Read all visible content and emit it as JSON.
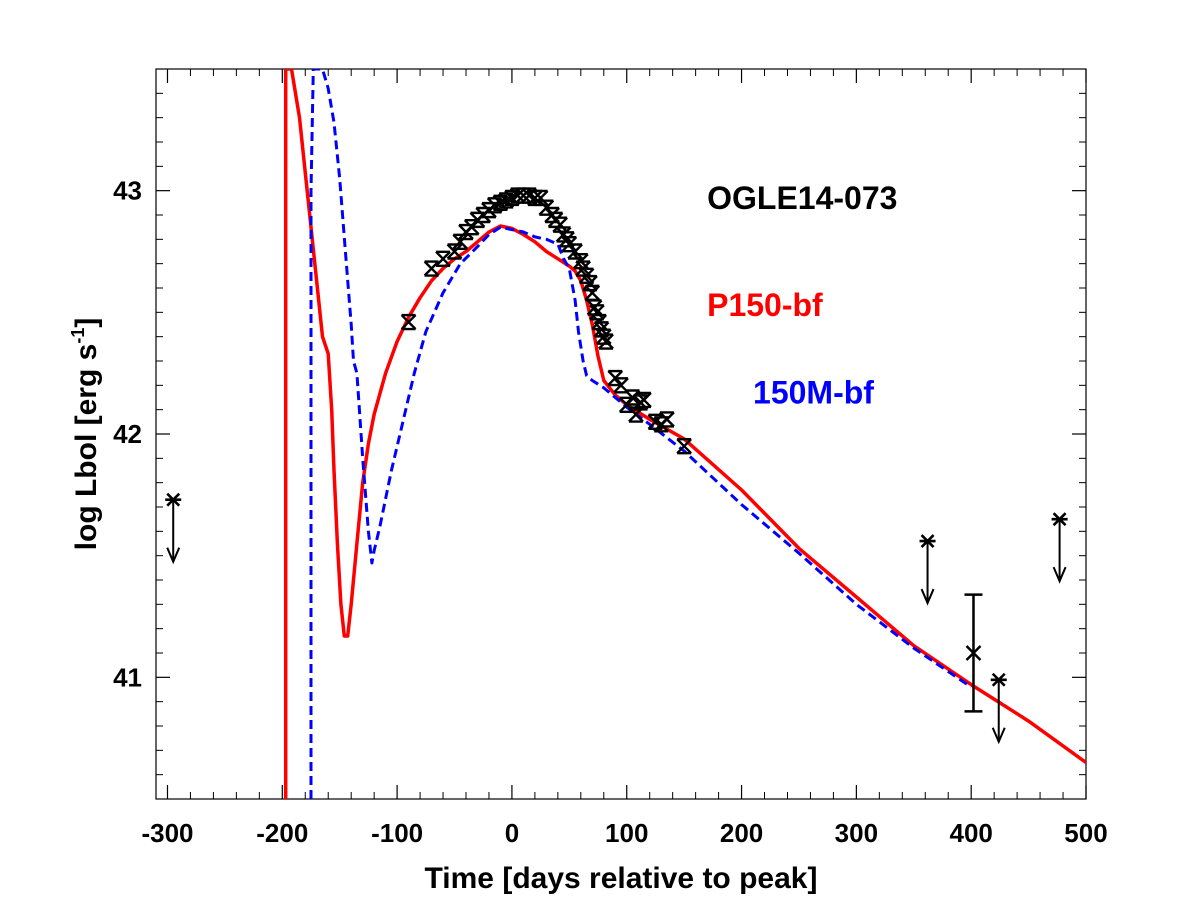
{
  "chart_data": {
    "type": "line",
    "xlabel": "Time [days relative to peak]",
    "ylabel": "log Lbol [erg s",
    "ylabel_sup": "-1",
    "ylabel_end": "]",
    "xlim": [
      -310,
      500
    ],
    "ylim": [
      40.5,
      43.5
    ],
    "xticks": [
      -300,
      -200,
      -100,
      0,
      100,
      200,
      300,
      400,
      500
    ],
    "xtick_labels": [
      "-300",
      "-200",
      "-100",
      "0",
      "100",
      "200",
      "300",
      "400",
      "500"
    ],
    "yticks": [
      41,
      42,
      43
    ],
    "ytick_labels": [
      "41",
      "42",
      "43"
    ],
    "annotations": [
      {
        "text": "OGLE14-073",
        "color": "#000000",
        "x": 170,
        "y": 42.97
      },
      {
        "text": "P150-bf",
        "color": "#ff0000",
        "x": 170,
        "y": 42.53
      },
      {
        "text": "150M-bf",
        "color": "#0000ff",
        "x": 210,
        "y": 42.17
      }
    ],
    "series": [
      {
        "name": "P150-bf",
        "color": "#ff0000",
        "style": "solid",
        "points": [
          [
            -197,
            40.5
          ],
          [
            -197,
            43.5
          ],
          [
            -192,
            43.5
          ],
          [
            -185,
            43.3
          ],
          [
            -175,
            42.85
          ],
          [
            -165,
            42.4
          ],
          [
            -160,
            42.33
          ],
          [
            -157,
            42.1
          ],
          [
            -155,
            41.85
          ],
          [
            -152,
            41.55
          ],
          [
            -149,
            41.3
          ],
          [
            -146,
            41.17
          ],
          [
            -143,
            41.17
          ],
          [
            -140,
            41.3
          ],
          [
            -135,
            41.55
          ],
          [
            -130,
            41.8
          ],
          [
            -125,
            41.96
          ],
          [
            -120,
            42.08
          ],
          [
            -110,
            42.25
          ],
          [
            -100,
            42.38
          ],
          [
            -90,
            42.48
          ],
          [
            -80,
            42.56
          ],
          [
            -70,
            42.63
          ],
          [
            -60,
            42.68
          ],
          [
            -50,
            42.72
          ],
          [
            -40,
            42.75
          ],
          [
            -30,
            42.79
          ],
          [
            -20,
            42.83
          ],
          [
            -10,
            42.855
          ],
          [
            0,
            42.845
          ],
          [
            10,
            42.82
          ],
          [
            20,
            42.79
          ],
          [
            30,
            42.75
          ],
          [
            40,
            42.72
          ],
          [
            50,
            42.69
          ],
          [
            55,
            42.67
          ],
          [
            60,
            42.63
          ],
          [
            65,
            42.55
          ],
          [
            70,
            42.45
          ],
          [
            75,
            42.32
          ],
          [
            80,
            42.22
          ],
          [
            90,
            42.16
          ],
          [
            100,
            42.12
          ],
          [
            120,
            42.06
          ],
          [
            150,
            41.98
          ],
          [
            200,
            41.77
          ],
          [
            250,
            41.53
          ],
          [
            300,
            41.33
          ],
          [
            350,
            41.13
          ],
          [
            400,
            40.97
          ],
          [
            450,
            40.82
          ],
          [
            500,
            40.65
          ]
        ]
      },
      {
        "name": "150M-bf",
        "color": "#0000ff",
        "style": "dashed",
        "points": [
          [
            -175,
            40.5
          ],
          [
            -175,
            43
          ],
          [
            -173,
            43.5
          ],
          [
            -165,
            43.5
          ],
          [
            -160,
            43.42
          ],
          [
            -155,
            43.28
          ],
          [
            -150,
            43.05
          ],
          [
            -145,
            42.75
          ],
          [
            -140,
            42.45
          ],
          [
            -138,
            42.3
          ],
          [
            -135,
            42.25
          ],
          [
            -130,
            41.9
          ],
          [
            -125,
            41.6
          ],
          [
            -122,
            41.47
          ],
          [
            -120,
            41.52
          ],
          [
            -115,
            41.62
          ],
          [
            -105,
            41.85
          ],
          [
            -95,
            42.05
          ],
          [
            -85,
            42.25
          ],
          [
            -75,
            42.42
          ],
          [
            -60,
            42.58
          ],
          [
            -45,
            42.7
          ],
          [
            -30,
            42.77
          ],
          [
            -20,
            42.82
          ],
          [
            -10,
            42.85
          ],
          [
            0,
            42.84
          ],
          [
            10,
            42.83
          ],
          [
            20,
            42.81
          ],
          [
            30,
            42.8
          ],
          [
            40,
            42.78
          ],
          [
            45,
            42.72
          ],
          [
            50,
            42.68
          ],
          [
            55,
            42.55
          ],
          [
            58,
            42.42
          ],
          [
            62,
            42.3
          ],
          [
            65,
            42.24
          ],
          [
            70,
            42.22
          ],
          [
            80,
            42.19
          ],
          [
            100,
            42.11
          ],
          [
            120,
            42.04
          ],
          [
            150,
            41.93
          ],
          [
            200,
            41.71
          ],
          [
            250,
            41.51
          ],
          [
            300,
            41.3
          ],
          [
            350,
            41.12
          ],
          [
            400,
            40.96
          ]
        ]
      }
    ],
    "observations": [
      [
        -90,
        42.46
      ],
      [
        -70,
        42.68
      ],
      [
        -60,
        42.72
      ],
      [
        -50,
        42.75
      ],
      [
        -45,
        42.79
      ],
      [
        -40,
        42.83
      ],
      [
        -35,
        42.85
      ],
      [
        -30,
        42.88
      ],
      [
        -25,
        42.9
      ],
      [
        -20,
        42.92
      ],
      [
        -15,
        42.94
      ],
      [
        -10,
        42.95
      ],
      [
        -5,
        42.96
      ],
      [
        0,
        42.97
      ],
      [
        5,
        42.98
      ],
      [
        10,
        42.98
      ],
      [
        15,
        42.98
      ],
      [
        20,
        42.97
      ],
      [
        25,
        42.97
      ],
      [
        30,
        42.93
      ],
      [
        35,
        42.9
      ],
      [
        38,
        42.88
      ],
      [
        42,
        42.86
      ],
      [
        45,
        42.82
      ],
      [
        48,
        42.8
      ],
      [
        50,
        42.78
      ],
      [
        55,
        42.75
      ],
      [
        60,
        42.71
      ],
      [
        62,
        42.68
      ],
      [
        65,
        42.65
      ],
      [
        68,
        42.62
      ],
      [
        70,
        42.58
      ],
      [
        72,
        42.52
      ],
      [
        74,
        42.5
      ],
      [
        76,
        42.46
      ],
      [
        78,
        42.43
      ],
      [
        80,
        42.4
      ],
      [
        82,
        42.38
      ],
      [
        90,
        42.23
      ],
      [
        95,
        42.2
      ],
      [
        100,
        42.12
      ],
      [
        105,
        42.15
      ],
      [
        108,
        42.08
      ],
      [
        112,
        42.13
      ],
      [
        115,
        42.14
      ],
      [
        125,
        42.05
      ],
      [
        130,
        42.04
      ],
      [
        135,
        42.06
      ],
      [
        150,
        41.95
      ]
    ],
    "measurement": {
      "x": 402,
      "y": 41.1,
      "err_low": 40.86,
      "err_high": 41.34
    },
    "upper_limits": [
      [
        -295,
        41.73
      ],
      [
        362,
        41.56
      ],
      [
        424,
        40.99
      ],
      [
        477,
        41.65
      ]
    ]
  }
}
